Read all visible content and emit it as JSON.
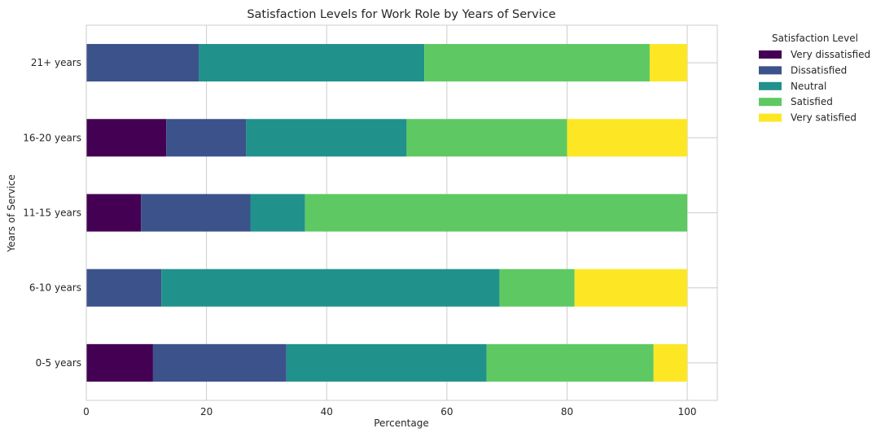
{
  "chart_data": {
    "type": "bar",
    "orientation": "horizontal",
    "stacked": true,
    "title": "Satisfaction Levels for Work Role by Years of Service",
    "xlabel": "Percentage",
    "ylabel": "Years of Service",
    "xlim": [
      0,
      105
    ],
    "xticks": [
      "0",
      "20",
      "40",
      "60",
      "80",
      "100"
    ],
    "grid": true,
    "legend_title": "Satisfaction Level",
    "legend_position": "outside top-right",
    "categories": [
      "0-5 years",
      "6-10 years",
      "11-15 years",
      "16-20 years",
      "21+ years"
    ],
    "series": [
      {
        "name": "Very dissatisfied",
        "color": "#440154",
        "values": [
          11.1,
          0,
          9.1,
          13.3,
          0
        ]
      },
      {
        "name": "Dissatisfied",
        "color": "#3b528b",
        "values": [
          22.2,
          12.5,
          18.2,
          13.3,
          18.75
        ]
      },
      {
        "name": "Neutral",
        "color": "#21918c",
        "values": [
          33.3,
          56.25,
          9.1,
          26.7,
          37.5
        ]
      },
      {
        "name": "Satisfied",
        "color": "#5ec962",
        "values": [
          27.8,
          12.5,
          63.6,
          26.7,
          37.5
        ]
      },
      {
        "name": "Very satisfied",
        "color": "#fde725",
        "values": [
          5.6,
          18.75,
          0,
          20.0,
          6.25
        ]
      }
    ]
  }
}
